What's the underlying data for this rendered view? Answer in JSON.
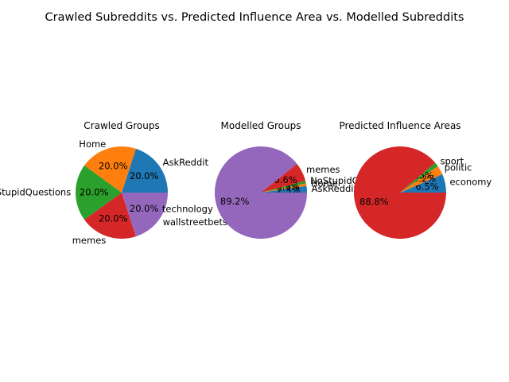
{
  "figure_title": "Crawled Subreddits vs. Predicted Influence Area vs. Modelled Subreddits",
  "chart_data": [
    {
      "type": "pie",
      "title": "Crawled Groups",
      "labels": [
        "AskReddit",
        "Home",
        "NoStupidQuestions",
        "memes",
        "wallstreetbets"
      ],
      "values": [
        20.0,
        20.0,
        20.0,
        20.0,
        20.0
      ],
      "pct_labels": [
        "20.0%",
        "20.0%",
        "20.0%",
        "20.0%",
        "20.0%"
      ],
      "colors": [
        "#1f77b4",
        "#ff7f0e",
        "#2ca02c",
        "#d62728",
        "#9467bd"
      ]
    },
    {
      "type": "pie",
      "title": "Modelled Groups",
      "labels": [
        "AskReddit",
        "Home",
        "NoStupidQuestions",
        "memes",
        "technology"
      ],
      "values": [
        2.3,
        0.9,
        0.9,
        6.6,
        89.2
      ],
      "pct_labels": [
        "2.3%",
        "0.9%",
        "0.9%",
        "6.6%",
        "89.2%"
      ],
      "colors": [
        "#1f77b4",
        "#ff7f0e",
        "#2ca02c",
        "#d62728",
        "#9467bd"
      ]
    },
    {
      "type": "pie",
      "title": "Predicted Influence Areas",
      "labels": [
        "economy",
        "politic",
        "sport",
        ""
      ],
      "values": [
        6.5,
        3.2,
        1.5,
        88.8
      ],
      "pct_labels": [
        "6.5%",
        "3.2%",
        "1.5%",
        "88.8%"
      ],
      "colors": [
        "#1f77b4",
        "#ff7f0e",
        "#2ca02c",
        "#d62728"
      ]
    }
  ]
}
